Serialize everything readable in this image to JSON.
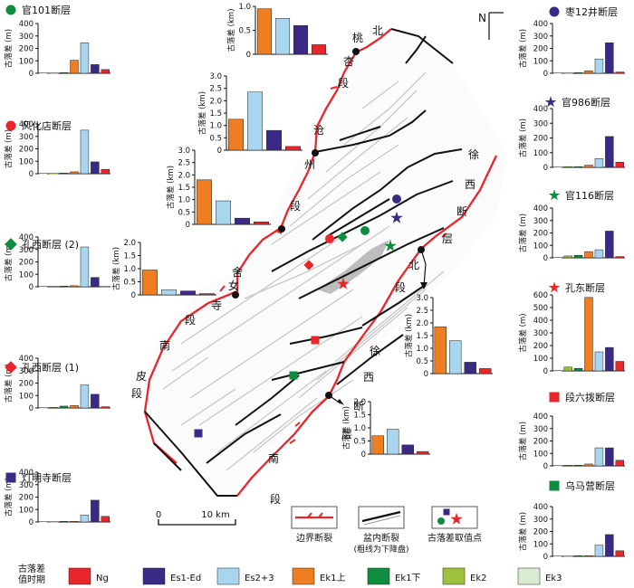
{
  "colors": {
    "Ng": "#e8262b",
    "Es1Ed": "#3b2a85",
    "Es23": "#a9d6ef",
    "Ek1up": "#ef7d22",
    "Ek1down": "#0f8c3e",
    "Ek2": "#9cc33b",
    "Ek3": "#d9ecd3",
    "boundary": "#e8262b",
    "fault": "#111111",
    "minor_fault": "#c8c8c8"
  },
  "series_order": [
    "Ek3",
    "Ek2",
    "Ek1down",
    "Ek1up",
    "Es23",
    "Es1Ed",
    "Ng"
  ],
  "yaxis_label": "古落差 (m)",
  "yaxis_label_km": "古落差 (km)",
  "legend": {
    "title_line1": "古落差",
    "title_line2": "值时期",
    "items": [
      {
        "key": "Ng",
        "label": "Ng"
      },
      {
        "key": "Es1Ed",
        "label": "Es1-Ed"
      },
      {
        "key": "Es23",
        "label": "Es2+3"
      },
      {
        "key": "Ek1up",
        "label": "Ek1上"
      },
      {
        "key": "Ek1down",
        "label": "Ek1下"
      },
      {
        "key": "Ek2",
        "label": "Ek2"
      },
      {
        "key": "Ek3",
        "label": "Ek3"
      }
    ]
  },
  "map_legend": {
    "boundary": "边界断裂",
    "inner_line1": "盆内断裂",
    "inner_line2": "(粗线为下降盘)",
    "point": "古落差取值点"
  },
  "scale": {
    "zero": "0",
    "label": "10 km"
  },
  "north": "N",
  "place_labels": [
    "北",
    "桃",
    "杏",
    "段",
    "沧",
    "州",
    "段",
    "舍",
    "女",
    "寺",
    "段",
    "南",
    "皮",
    "段",
    "徐",
    "西",
    "断",
    "层",
    "北",
    "段",
    "徐",
    "西",
    "断",
    "层",
    "南",
    "段"
  ],
  "chart_data": [
    {
      "type": "bar",
      "title": "官101断层",
      "marker": "circle",
      "marker_color": "#0f8c3e",
      "ylim": [
        0,
        400
      ],
      "ticks": [
        "0",
        "100",
        "200",
        "300",
        "400"
      ],
      "values": {
        "Ek3": 0,
        "Ek2": 0,
        "Ek1down": 5,
        "Ek1up": 105,
        "Es23": 245,
        "Es1Ed": 70,
        "Ng": 30
      }
    },
    {
      "type": "bar",
      "title": "风化店断层",
      "marker": "circle",
      "marker_color": "#e8262b",
      "ylim": [
        0,
        400
      ],
      "ticks": [
        "0",
        "100",
        "200",
        "300",
        "400"
      ],
      "values": {
        "Ek3": 0,
        "Ek2": 0,
        "Ek1down": 5,
        "Ek1up": 15,
        "Es23": 350,
        "Es1Ed": 95,
        "Ng": 35
      }
    },
    {
      "type": "bar",
      "title": "孔西断层 (2)",
      "marker": "diamond",
      "marker_color": "#0f8c3e",
      "ylim": [
        0,
        400
      ],
      "ticks": [
        "0",
        "100",
        "200",
        "300",
        "400"
      ],
      "values": {
        "Ek3": 0,
        "Ek2": 3,
        "Ek1down": 5,
        "Ek1up": 8,
        "Es23": 320,
        "Es1Ed": 75,
        "Ng": 0
      }
    },
    {
      "type": "bar",
      "title": "孔西断层 (1)",
      "marker": "diamond",
      "marker_color": "#e8262b",
      "ylim": [
        0,
        400
      ],
      "ticks": [
        "0",
        "100",
        "200",
        "300",
        "400"
      ],
      "values": {
        "Ek3": 0,
        "Ek2": 5,
        "Ek1down": 15,
        "Ek1up": 20,
        "Es23": 185,
        "Es1Ed": 110,
        "Ng": 10
      }
    },
    {
      "type": "bar",
      "title": "灯明寺断层",
      "marker": "square",
      "marker_color": "#3b2a85",
      "ylim": [
        0,
        400
      ],
      "ticks": [
        "0",
        "100",
        "200",
        "300",
        "400"
      ],
      "values": {
        "Ek3": 0,
        "Ek2": 0,
        "Ek1down": 5,
        "Ek1up": 5,
        "Es23": 55,
        "Es1Ed": 175,
        "Ng": 45
      }
    },
    {
      "type": "bar",
      "title": "枣12井断层",
      "marker": "circle",
      "marker_color": "#3b2a85",
      "ylim": [
        0,
        400
      ],
      "ticks": [
        "0",
        "100",
        "200",
        "300",
        "400"
      ],
      "values": {
        "Ek3": 0,
        "Ek2": 0,
        "Ek1down": 5,
        "Ek1up": 20,
        "Es23": 115,
        "Es1Ed": 245,
        "Ng": 10
      }
    },
    {
      "type": "bar",
      "title": "官986断层",
      "marker": "star",
      "marker_color": "#3b2a85",
      "ylim": [
        0,
        400
      ],
      "ticks": [
        "0",
        "100",
        "200",
        "300",
        "400"
      ],
      "values": {
        "Ek3": 0,
        "Ek2": 5,
        "Ek1down": 5,
        "Ek1up": 15,
        "Es23": 60,
        "Es1Ed": 210,
        "Ng": 35
      }
    },
    {
      "type": "bar",
      "title": "官116断层",
      "marker": "star",
      "marker_color": "#0f8c3e",
      "ylim": [
        0,
        400
      ],
      "ticks": [
        "0",
        "100",
        "200",
        "300",
        "400"
      ],
      "values": {
        "Ek3": 0,
        "Ek2": 15,
        "Ek1down": 20,
        "Ek1up": 50,
        "Es23": 65,
        "Es1Ed": 215,
        "Ng": 10
      }
    },
    {
      "type": "bar",
      "title": "孔东断层",
      "marker": "star",
      "marker_color": "#e8262b",
      "ylim": [
        0,
        600
      ],
      "ticks": [
        "0",
        "100",
        "200",
        "300",
        "400",
        "500",
        "600"
      ],
      "values": {
        "Ek3": 0,
        "Ek2": 30,
        "Ek1down": 20,
        "Ek1up": 580,
        "Es23": 150,
        "Es1Ed": 185,
        "Ng": 75
      }
    },
    {
      "type": "bar",
      "title": "段六拨断层",
      "marker": "square",
      "marker_color": "#e8262b",
      "ylim": [
        0,
        400
      ],
      "ticks": [
        "0",
        "100",
        "200",
        "300",
        "400"
      ],
      "values": {
        "Ek3": 0,
        "Ek2": 5,
        "Ek1down": 5,
        "Ek1up": 15,
        "Es23": 145,
        "Es1Ed": 145,
        "Ng": 45
      }
    },
    {
      "type": "bar",
      "title": "乌马营断层",
      "marker": "square",
      "marker_color": "#0f8c3e",
      "ylim": [
        0,
        400
      ],
      "ticks": [
        "0",
        "100",
        "200",
        "300",
        "400"
      ],
      "values": {
        "Ek3": 0,
        "Ek2": 0,
        "Ek1down": 5,
        "Ek1up": 5,
        "Es23": 90,
        "Es1Ed": 175,
        "Ng": 45
      }
    },
    {
      "type": "bar",
      "title": "",
      "unit": "km",
      "ylim": [
        0,
        1.0
      ],
      "ticks": [
        "0",
        "0.5",
        "1.0"
      ],
      "values": {
        "Ek1up": 0.95,
        "Es23": 0.75,
        "Es1Ed": 0.6,
        "Ng": 0.2
      }
    },
    {
      "type": "bar",
      "title": "",
      "unit": "km",
      "ylim": [
        0,
        3.0
      ],
      "ticks": [
        "0",
        "0.5",
        "1.0",
        "1.5",
        "2.0",
        "2.5",
        "3.0"
      ],
      "values": {
        "Ek1up": 1.25,
        "Es23": 2.35,
        "Es1Ed": 0.8,
        "Ng": 0.15
      }
    },
    {
      "type": "bar",
      "title": "",
      "unit": "km",
      "ylim": [
        0,
        3.0
      ],
      "ticks": [
        "0",
        "0.5",
        "1.0",
        "1.5",
        "2.0",
        "2.5",
        "3.0"
      ],
      "values": {
        "Ek1up": 1.8,
        "Es23": 0.95,
        "Es1Ed": 0.25,
        "Ng": 0.1
      }
    },
    {
      "type": "bar",
      "title": "",
      "unit": "km",
      "ylim": [
        0,
        2.0
      ],
      "ticks": [
        "0",
        "0.5",
        "1.0",
        "1.5",
        "2.0"
      ],
      "values": {
        "Ek1up": 0.95,
        "Es23": 0.2,
        "Es1Ed": 0.15,
        "Ng": 0.05
      }
    },
    {
      "type": "bar",
      "title": "",
      "unit": "km",
      "ylim": [
        0,
        3.0
      ],
      "ticks": [
        "0",
        "0.5",
        "1.0",
        "1.5",
        "2.0",
        "2.5",
        "3.0"
      ],
      "values": {
        "Ek1up": 1.85,
        "Es23": 1.3,
        "Es1Ed": 0.45,
        "Ng": 0.2
      }
    },
    {
      "type": "bar",
      "title": "",
      "unit": "km",
      "ylim": [
        0,
        2.0
      ],
      "ticks": [
        "0",
        "0.5",
        "1.0",
        "1.5",
        "2.0"
      ],
      "values": {
        "Ek1up": 0.7,
        "Es23": 0.95,
        "Es1Ed": 0.35,
        "Ng": 0.1
      }
    }
  ]
}
